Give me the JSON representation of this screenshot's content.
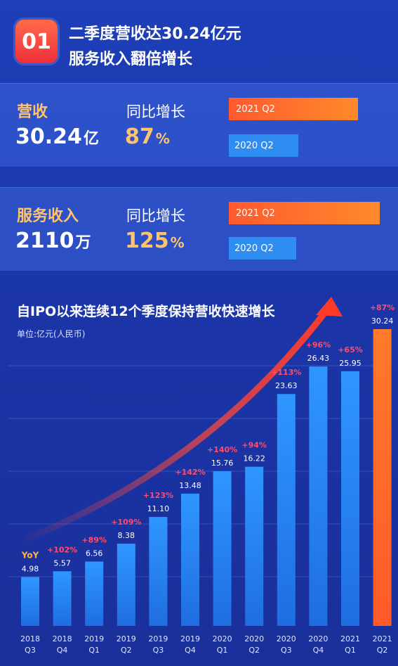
{
  "header": {
    "badge": "01",
    "line1": "二季度营收达30.24亿元",
    "line2": "服务收入翻倍增长"
  },
  "revenue": {
    "label": "营收",
    "value": "30.24",
    "unit": "亿",
    "yoy_label": "同比增长",
    "yoy_value": "87",
    "yoy_unit": "%",
    "bar_current_label": "2021 Q2",
    "bar_previous_label": "2020 Q2",
    "bar_current_value": 30.24,
    "bar_previous_value": 16.22
  },
  "service": {
    "label": "服务收入",
    "value": "2110",
    "unit": "万",
    "yoy_label": "同比增长",
    "yoy_value": "125",
    "yoy_unit": "%",
    "bar_current_label": "2021 Q2",
    "bar_previous_label": "2020 Q2",
    "yoy_percent": 125
  },
  "chart_data": {
    "type": "bar",
    "title": "自IPO以来连续12个季度保持营收快速增长",
    "unit_label": "单位:亿元(人民币)",
    "yoy_header": "YoY",
    "categories": [
      [
        "2018",
        "Q3"
      ],
      [
        "2018",
        "Q4"
      ],
      [
        "2019",
        "Q1"
      ],
      [
        "2019",
        "Q2"
      ],
      [
        "2019",
        "Q3"
      ],
      [
        "2019",
        "Q4"
      ],
      [
        "2020",
        "Q1"
      ],
      [
        "2020",
        "Q2"
      ],
      [
        "2020",
        "Q3"
      ],
      [
        "2020",
        "Q4"
      ],
      [
        "2021",
        "Q1"
      ],
      [
        "2021",
        "Q2"
      ]
    ],
    "values": [
      4.98,
      5.57,
      6.56,
      8.38,
      11.1,
      13.48,
      15.76,
      16.22,
      23.63,
      26.43,
      25.95,
      30.24
    ],
    "value_labels": [
      "4.98",
      "5.57",
      "6.56",
      "8.38",
      "11.10",
      "13.48",
      "15.76",
      "16.22",
      "23.63",
      "26.43",
      "25.95",
      "30.24"
    ],
    "yoy": [
      "",
      "+102%",
      "+89%",
      "+109%",
      "+123%",
      "+142%",
      "+140%",
      "+94%",
      "+113%",
      "+96%",
      "+65%",
      "+87%"
    ],
    "ylim": [
      0,
      30.24
    ],
    "highlight_index": 11,
    "colors": {
      "bar": "#2a86f2",
      "highlight": "#ff6a2a",
      "yoy": "#ff4d6a",
      "arrow": "#ff4a3a"
    }
  }
}
